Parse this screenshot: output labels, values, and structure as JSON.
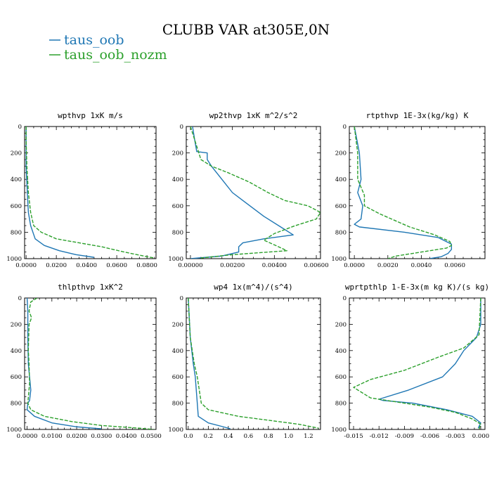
{
  "figure": {
    "title": "CLUBB VAR at305E,0N",
    "legend": [
      {
        "label": "taus_oob",
        "color": "#1f77b4"
      },
      {
        "label": "taus_oob_nozm",
        "color": "#2ca02c"
      }
    ]
  },
  "chart_data": [
    {
      "type": "line",
      "title": "wpthvp   1xK m/s",
      "xlim": [
        -0.001,
        0.086
      ],
      "ylim": [
        1000,
        0
      ],
      "xticks": [
        0.0,
        0.02,
        0.04,
        0.06,
        0.08
      ],
      "xticklabels": [
        "0.0000",
        "0.0200",
        "0.0400",
        "0.0600",
        "0.0800"
      ],
      "yticks": [
        0,
        200,
        400,
        600,
        800,
        1000
      ],
      "series": [
        {
          "name": "taus_oob",
          "color": "#1f77b4",
          "dash": "",
          "points": [
            [
              0.0,
              0
            ],
            [
              0.0,
              100
            ],
            [
              0.0,
              300
            ],
            [
              0.0008,
              500
            ],
            [
              0.0015,
              650
            ],
            [
              0.003,
              750
            ],
            [
              0.006,
              850
            ],
            [
              0.012,
              900
            ],
            [
              0.022,
              940
            ],
            [
              0.033,
              970
            ],
            [
              0.045,
              990
            ]
          ]
        },
        {
          "name": "taus_oob_nozm",
          "color": "#2ca02c",
          "dash": "5,2",
          "points": [
            [
              0.0,
              0
            ],
            [
              0.0,
              100
            ],
            [
              0.0005,
              300
            ],
            [
              0.0015,
              500
            ],
            [
              0.003,
              650
            ],
            [
              0.005,
              750
            ],
            [
              0.01,
              800
            ],
            [
              0.02,
              850
            ],
            [
              0.035,
              880
            ],
            [
              0.05,
              910
            ],
            [
              0.065,
              950
            ],
            [
              0.08,
              985
            ],
            [
              0.085,
              995
            ]
          ]
        }
      ]
    },
    {
      "type": "line",
      "title": "wp2thvp   1xK m^2/s^2",
      "xlim": [
        -0.0002,
        0.0062
      ],
      "ylim": [
        1000,
        0
      ],
      "xticks": [
        0.0,
        0.002,
        0.004,
        0.006
      ],
      "xticklabels": [
        "0.00000",
        "0.00200",
        "0.00400",
        "0.00600"
      ],
      "yticks": [
        0,
        200,
        400,
        600,
        800,
        1000
      ],
      "series": [
        {
          "name": "taus_oob",
          "color": "#1f77b4",
          "dash": "",
          "points": [
            [
              0.0001,
              0
            ],
            [
              0.0002,
              100
            ],
            [
              0.0003,
              190
            ],
            [
              0.0008,
              200
            ],
            [
              0.0008,
              250
            ],
            [
              0.001,
              300
            ],
            [
              0.0015,
              400
            ],
            [
              0.002,
              500
            ],
            [
              0.0025,
              560
            ],
            [
              0.0035,
              680
            ],
            [
              0.0045,
              780
            ],
            [
              0.0049,
              820
            ],
            [
              0.0035,
              850
            ],
            [
              0.0025,
              880
            ],
            [
              0.0023,
              910
            ],
            [
              0.0023,
              950
            ],
            [
              0.0015,
              980
            ],
            [
              0.0,
              1000
            ]
          ]
        },
        {
          "name": "taus_oob_nozm",
          "color": "#2ca02c",
          "dash": "5,2",
          "points": [
            [
              0.0,
              0
            ],
            [
              0.0002,
              100
            ],
            [
              0.0005,
              250
            ],
            [
              0.001,
              300
            ],
            [
              0.0018,
              350
            ],
            [
              0.0028,
              420
            ],
            [
              0.0037,
              500
            ],
            [
              0.0045,
              560
            ],
            [
              0.0056,
              600
            ],
            [
              0.0062,
              650
            ],
            [
              0.006,
              700
            ],
            [
              0.005,
              750
            ],
            [
              0.004,
              810
            ],
            [
              0.0035,
              860
            ],
            [
              0.0042,
              910
            ],
            [
              0.0046,
              940
            ],
            [
              0.002,
              970
            ],
            [
              0.0005,
              995
            ]
          ]
        }
      ]
    },
    {
      "type": "line",
      "title": "rtpthvp   1E-3x(kg/kg) K",
      "xlim": [
        -0.0003,
        0.0078
      ],
      "ylim": [
        1000,
        0
      ],
      "xticks": [
        0.0,
        0.002,
        0.004,
        0.006
      ],
      "xticklabels": [
        "0.0000",
        "0.0020",
        "0.0040",
        "0.0060"
      ],
      "yticks": [
        0,
        200,
        400,
        600,
        800,
        1000
      ],
      "series": [
        {
          "name": "taus_oob",
          "color": "#1f77b4",
          "dash": "",
          "points": [
            [
              0.0,
              0
            ],
            [
              0.0003,
              200
            ],
            [
              0.0004,
              400
            ],
            [
              0.0002,
              500
            ],
            [
              0.0005,
              600
            ],
            [
              0.0004,
              700
            ],
            [
              0.0,
              740
            ],
            [
              0.0003,
              760
            ],
            [
              0.003,
              800
            ],
            [
              0.005,
              840
            ],
            [
              0.0058,
              890
            ],
            [
              0.0058,
              930
            ],
            [
              0.0056,
              960
            ],
            [
              0.0052,
              985
            ],
            [
              0.0045,
              1000
            ]
          ]
        },
        {
          "name": "taus_oob_nozm",
          "color": "#2ca02c",
          "dash": "5,2",
          "points": [
            [
              0.0,
              0
            ],
            [
              0.0002,
              200
            ],
            [
              0.0002,
              400
            ],
            [
              0.0006,
              520
            ],
            [
              0.0006,
              600
            ],
            [
              0.0015,
              660
            ],
            [
              0.0033,
              760
            ],
            [
              0.0048,
              820
            ],
            [
              0.0057,
              870
            ],
            [
              0.0058,
              900
            ],
            [
              0.0055,
              920
            ],
            [
              0.004,
              950
            ],
            [
              0.0025,
              980
            ],
            [
              0.002,
              1000
            ]
          ]
        }
      ]
    },
    {
      "type": "line",
      "title": "thlpthvp   1xK^2",
      "xlim": [
        -0.001,
        0.052
      ],
      "ylim": [
        1000,
        0
      ],
      "xticks": [
        0.0,
        0.01,
        0.02,
        0.03,
        0.04,
        0.05
      ],
      "xticklabels": [
        "0.0000",
        "0.0100",
        "0.0200",
        "0.0300",
        "0.0400",
        "0.0500"
      ],
      "yticks": [
        0,
        200,
        400,
        600,
        800,
        1000
      ],
      "series": [
        {
          "name": "taus_oob",
          "color": "#1f77b4",
          "dash": "",
          "points": [
            [
              0.0,
              0
            ],
            [
              0.0003,
              100
            ],
            [
              0.0003,
              300
            ],
            [
              0.0005,
              500
            ],
            [
              0.001,
              600
            ],
            [
              0.0015,
              700
            ],
            [
              0.001,
              780
            ],
            [
              0.0003,
              800
            ],
            [
              0.0,
              850
            ],
            [
              0.003,
              900
            ],
            [
              0.01,
              950
            ],
            [
              0.02,
              980
            ],
            [
              0.03,
              995
            ]
          ]
        },
        {
          "name": "taus_oob_nozm",
          "color": "#2ca02c",
          "dash": "5,2",
          "points": [
            [
              0.004,
              0
            ],
            [
              0.0015,
              30
            ],
            [
              0.0008,
              100
            ],
            [
              0.0018,
              150
            ],
            [
              0.0008,
              200
            ],
            [
              0.0005,
              400
            ],
            [
              0.0008,
              500
            ],
            [
              0.001,
              650
            ],
            [
              0.0003,
              800
            ],
            [
              0.0015,
              850
            ],
            [
              0.007,
              900
            ],
            [
              0.018,
              940
            ],
            [
              0.03,
              970
            ],
            [
              0.045,
              990
            ],
            [
              0.051,
              1000
            ]
          ]
        }
      ]
    },
    {
      "type": "line",
      "title": "wp4   1x(m^4)/(s^4)",
      "xlim": [
        -0.02,
        1.32
      ],
      "ylim": [
        1000,
        0
      ],
      "xticks": [
        0.0,
        0.2,
        0.4,
        0.6,
        0.8,
        1.0,
        1.2
      ],
      "xticklabels": [
        "0.0",
        "0.2",
        "0.4",
        "0.6",
        "0.8",
        "1.0",
        "1.2"
      ],
      "yticks": [
        0,
        200,
        400,
        600,
        800,
        1000
      ],
      "series": [
        {
          "name": "taus_oob",
          "color": "#1f77b4",
          "dash": "",
          "points": [
            [
              0.0,
              0
            ],
            [
              0.02,
              300
            ],
            [
              0.05,
              500
            ],
            [
              0.07,
              600
            ],
            [
              0.08,
              700
            ],
            [
              0.09,
              800
            ],
            [
              0.1,
              900
            ],
            [
              0.2,
              950
            ],
            [
              0.35,
              980
            ],
            [
              0.42,
              995
            ]
          ]
        },
        {
          "name": "taus_oob_nozm",
          "color": "#2ca02c",
          "dash": "5,2",
          "points": [
            [
              0.0,
              0
            ],
            [
              0.02,
              300
            ],
            [
              0.06,
              500
            ],
            [
              0.09,
              600
            ],
            [
              0.11,
              700
            ],
            [
              0.13,
              800
            ],
            [
              0.2,
              850
            ],
            [
              0.5,
              900
            ],
            [
              0.8,
              930
            ],
            [
              1.1,
              960
            ],
            [
              1.3,
              990
            ]
          ]
        }
      ]
    },
    {
      "type": "line",
      "title": "wprtpthlp   1-E-3x(m kg K)/(s kg)",
      "xlim": [
        -0.0155,
        0.0005
      ],
      "ylim": [
        1000,
        0
      ],
      "xticks": [
        -0.015,
        -0.012,
        -0.009,
        -0.006,
        -0.003,
        0.0
      ],
      "xticklabels": [
        "-0.015",
        "-0.012",
        "-0.009",
        "-0.006",
        "-0.003",
        "0.000"
      ],
      "yticks": [
        0,
        200,
        400,
        600,
        800,
        1000
      ],
      "series": [
        {
          "name": "taus_oob",
          "color": "#1f77b4",
          "dash": "",
          "points": [
            [
              0.0,
              0
            ],
            [
              0.0,
              200
            ],
            [
              -0.0005,
              300
            ],
            [
              -0.002,
              400
            ],
            [
              -0.003,
              500
            ],
            [
              -0.0045,
              600
            ],
            [
              -0.0085,
              700
            ],
            [
              -0.012,
              770
            ],
            [
              -0.0115,
              780
            ],
            [
              -0.008,
              800
            ],
            [
              -0.004,
              850
            ],
            [
              -0.001,
              900
            ],
            [
              0.0,
              950
            ],
            [
              -0.0003,
              990
            ]
          ]
        },
        {
          "name": "taus_oob_nozm",
          "color": "#2ca02c",
          "dash": "5,2",
          "points": [
            [
              0.0,
              0
            ],
            [
              -0.0002,
              280
            ],
            [
              -0.002,
              380
            ],
            [
              -0.005,
              450
            ],
            [
              -0.009,
              550
            ],
            [
              -0.013,
              620
            ],
            [
              -0.015,
              680
            ],
            [
              -0.013,
              760
            ],
            [
              -0.01,
              790
            ],
            [
              -0.006,
              830
            ],
            [
              -0.003,
              870
            ],
            [
              -0.001,
              920
            ],
            [
              0.0,
              960
            ],
            [
              -0.0002,
              1000
            ]
          ]
        }
      ]
    }
  ]
}
